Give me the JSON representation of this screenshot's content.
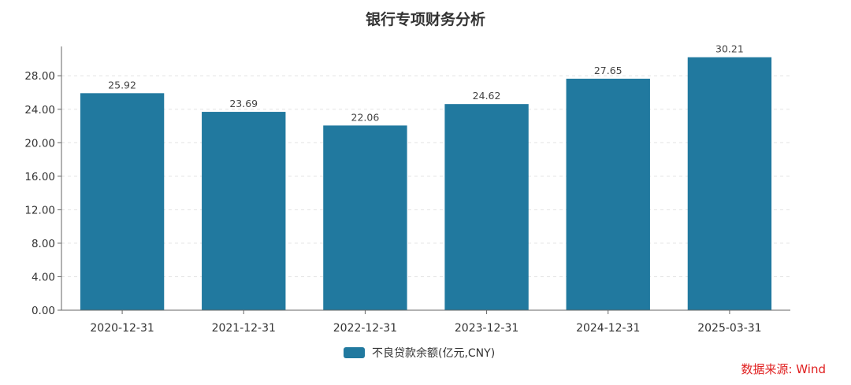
{
  "chart_data": {
    "type": "bar",
    "title": "银行专项财务分析",
    "categories": [
      "2020-12-31",
      "2021-12-31",
      "2022-12-31",
      "2023-12-31",
      "2024-12-31",
      "2025-03-31"
    ],
    "series": [
      {
        "name": "不良贷款余额(亿元,CNY)",
        "values": [
          25.92,
          23.69,
          22.06,
          24.62,
          27.65,
          30.21
        ],
        "color": "#21799f"
      }
    ],
    "yticks": [
      "0.00",
      "4.00",
      "8.00",
      "12.00",
      "16.00",
      "20.00",
      "24.00",
      "28.00"
    ],
    "ylim": [
      0,
      31.5
    ],
    "grid": true,
    "legend_position": "bottom-center"
  },
  "source_note": "数据来源: Wind"
}
